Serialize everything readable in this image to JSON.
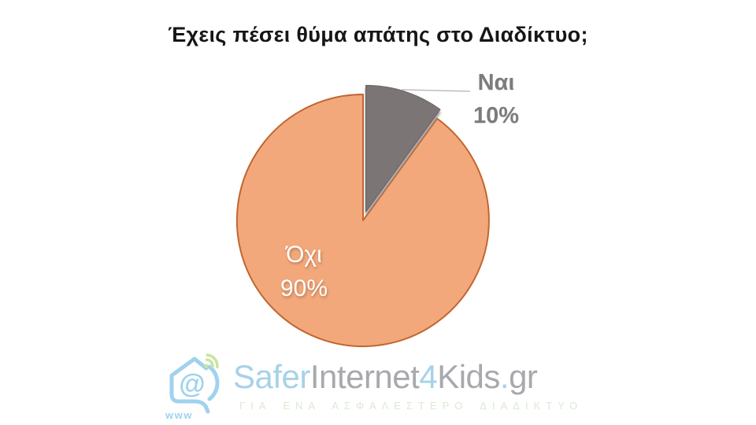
{
  "chart_data": {
    "type": "pie",
    "title": "Έχεις πέσει θύμα απάτης στο Διαδίκτυο;",
    "categories": [
      "Ναι",
      "Όχι"
    ],
    "values": [
      10,
      90
    ],
    "slices": [
      {
        "label": "Ναι",
        "value": 10,
        "pct_label": "10%",
        "color": "#7B7575",
        "stroke": "#716B6B",
        "exploded": true,
        "label_position": "outside"
      },
      {
        "label": "Όχι",
        "value": 90,
        "pct_label": "90%",
        "color": "#F3A87C",
        "stroke": "#C2662F",
        "exploded": false,
        "label_position": "inside"
      }
    ],
    "start_angle_deg": 0,
    "direction": "clockwise",
    "legend": "none",
    "background": "#FFFFFF",
    "outside_label_color": "#7C7C7C",
    "inside_label_color": "#FFFFFF",
    "leader_line_color": "#B3B0B0"
  },
  "footer": {
    "logo_text": {
      "safer": "Safer",
      "internet": "Internet",
      "four": "4",
      "kids": "Kids",
      "dot": ".",
      "gr": "gr"
    },
    "at": "@",
    "www": "www",
    "tagline": "ΓΙΑ ΕΝΑ ΑΣΦΑΛΕΣΤΕΡΟ ΔΙΑΔΙΚΤΥΟ",
    "colors": {
      "text_blue": "#A6D2E9",
      "text_gray": "#A8A9AD",
      "icon_blue": "#9FD2EE",
      "wifi_green": "#C9E49F",
      "tagline_green": "#DAEAD3"
    }
  }
}
